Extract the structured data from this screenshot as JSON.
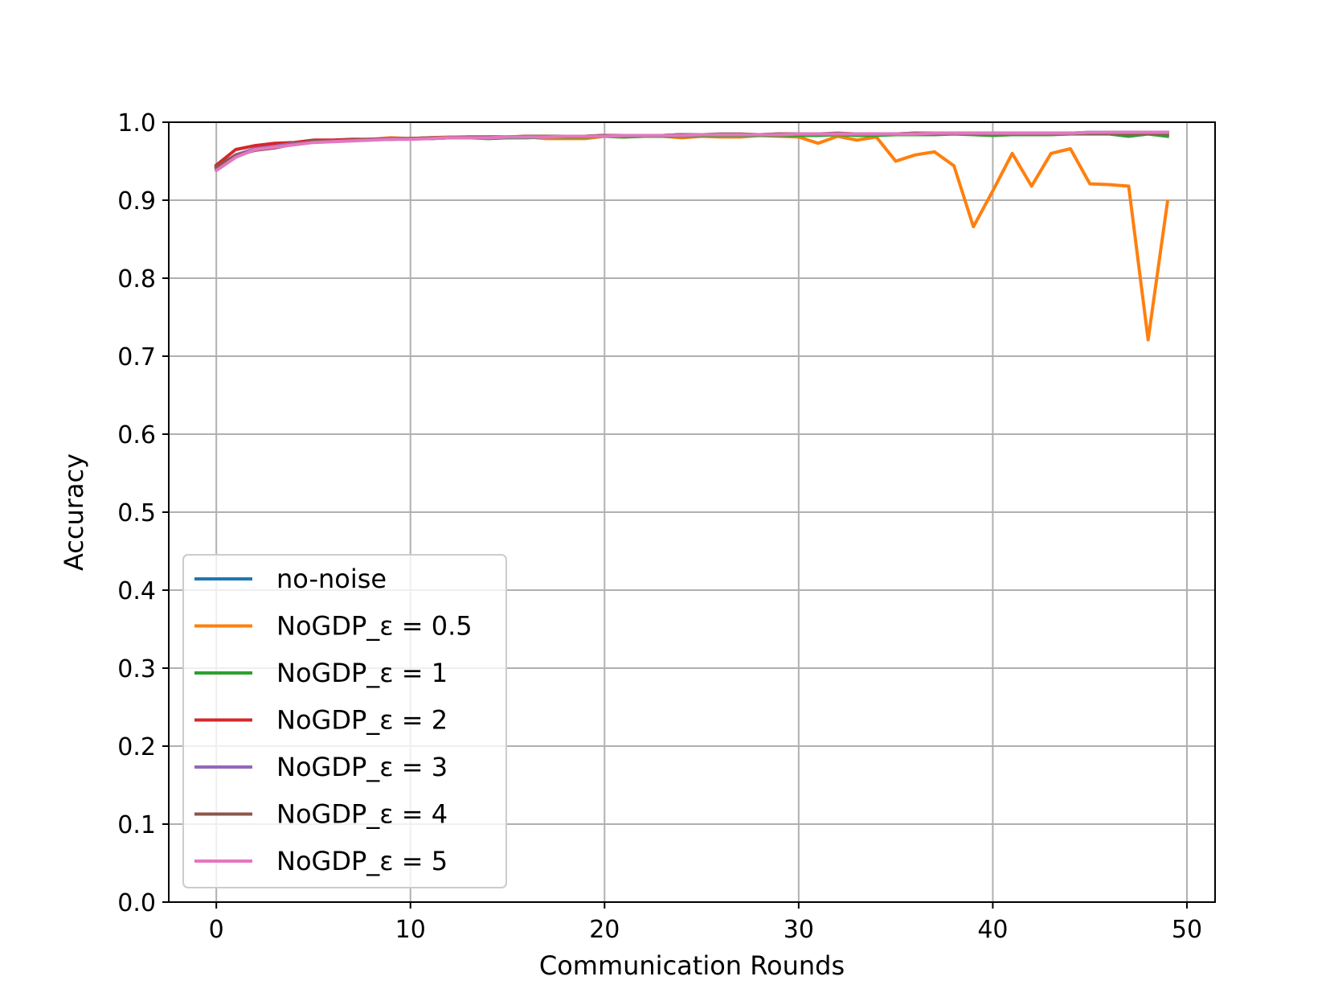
{
  "chart_data": {
    "type": "line",
    "title": "",
    "xlabel": "Communication Rounds",
    "ylabel": "Accuracy",
    "xlim": [
      -2.45,
      51.45
    ],
    "ylim": [
      0.0,
      1.0
    ],
    "xticks": [
      0,
      10,
      20,
      30,
      40,
      50
    ],
    "xtick_labels": [
      "0",
      "10",
      "20",
      "30",
      "40",
      "50"
    ],
    "yticks": [
      0.0,
      0.1,
      0.2,
      0.3,
      0.4,
      0.5,
      0.6,
      0.7,
      0.8,
      0.9,
      1.0
    ],
    "ytick_labels": [
      "0.0",
      "0.1",
      "0.2",
      "0.3",
      "0.4",
      "0.5",
      "0.6",
      "0.7",
      "0.8",
      "0.9",
      "1.0"
    ],
    "grid": true,
    "legend_position": "lower-left",
    "x": [
      0,
      1,
      2,
      3,
      4,
      5,
      6,
      7,
      8,
      9,
      10,
      11,
      12,
      13,
      14,
      15,
      16,
      17,
      18,
      19,
      20,
      21,
      22,
      23,
      24,
      25,
      26,
      27,
      28,
      29,
      30,
      31,
      32,
      33,
      34,
      35,
      36,
      37,
      38,
      39,
      40,
      41,
      42,
      43,
      44,
      45,
      46,
      47,
      48,
      49
    ],
    "series": [
      {
        "name": "no-noise",
        "legend_prefix": "no-noise",
        "legend_eps": "",
        "color": "#1f77b4",
        "values": [
          0.942,
          0.958,
          0.966,
          0.97,
          0.973,
          0.975,
          0.976,
          0.977,
          0.978,
          0.978,
          0.979,
          0.979,
          0.98,
          0.98,
          0.981,
          0.981,
          0.981,
          0.982,
          0.982,
          0.982,
          0.983,
          0.983,
          0.983,
          0.983,
          0.984,
          0.984,
          0.984,
          0.984,
          0.984,
          0.984,
          0.985,
          0.985,
          0.985,
          0.985,
          0.985,
          0.985,
          0.985,
          0.986,
          0.986,
          0.986,
          0.986,
          0.986,
          0.986,
          0.986,
          0.986,
          0.987,
          0.987,
          0.987,
          0.987,
          0.987
        ]
      },
      {
        "name": "NoGDP_ε = 0.5",
        "legend_prefix": "NoGDP_",
        "legend_eps": "ε = 0.5",
        "color": "#ff7f0e",
        "values": [
          0.94,
          0.958,
          0.965,
          0.968,
          0.972,
          0.975,
          0.976,
          0.977,
          0.978,
          0.98,
          0.979,
          0.98,
          0.981,
          0.981,
          0.98,
          0.98,
          0.981,
          0.979,
          0.979,
          0.979,
          0.982,
          0.981,
          0.982,
          0.982,
          0.98,
          0.982,
          0.981,
          0.981,
          0.983,
          0.982,
          0.981,
          0.973,
          0.982,
          0.977,
          0.981,
          0.95,
          0.958,
          0.962,
          0.944,
          0.866,
          0.912,
          0.96,
          0.918,
          0.96,
          0.966,
          0.921,
          0.92,
          0.918,
          0.721,
          0.898
        ]
      },
      {
        "name": "NoGDP_ε = 1",
        "legend_prefix": "NoGDP_",
        "legend_eps": "ε = 1",
        "color": "#2ca02c",
        "values": [
          0.941,
          0.957,
          0.965,
          0.969,
          0.972,
          0.975,
          0.976,
          0.977,
          0.978,
          0.978,
          0.979,
          0.979,
          0.98,
          0.98,
          0.979,
          0.98,
          0.98,
          0.981,
          0.981,
          0.981,
          0.982,
          0.981,
          0.982,
          0.982,
          0.982,
          0.983,
          0.983,
          0.983,
          0.983,
          0.983,
          0.983,
          0.983,
          0.984,
          0.983,
          0.983,
          0.984,
          0.984,
          0.984,
          0.985,
          0.984,
          0.983,
          0.984,
          0.984,
          0.984,
          0.985,
          0.985,
          0.985,
          0.982,
          0.985,
          0.982
        ]
      },
      {
        "name": "NoGDP_ε = 2",
        "legend_prefix": "NoGDP_",
        "legend_eps": "ε = 2",
        "color": "#d62728",
        "values": [
          0.945,
          0.965,
          0.97,
          0.973,
          0.974,
          0.977,
          0.977,
          0.978,
          0.978,
          0.979,
          0.979,
          0.98,
          0.98,
          0.981,
          0.981,
          0.981,
          0.982,
          0.982,
          0.982,
          0.982,
          0.983,
          0.983,
          0.983,
          0.983,
          0.984,
          0.984,
          0.984,
          0.984,
          0.984,
          0.985,
          0.985,
          0.985,
          0.985,
          0.985,
          0.985,
          0.985,
          0.986,
          0.986,
          0.986,
          0.986,
          0.986,
          0.986,
          0.986,
          0.986,
          0.986,
          0.986,
          0.986,
          0.986,
          0.986,
          0.986
        ]
      },
      {
        "name": "NoGDP_ε = 3",
        "legend_prefix": "NoGDP_",
        "legend_eps": "ε = 3",
        "color": "#9467bd",
        "values": [
          0.942,
          0.958,
          0.966,
          0.969,
          0.973,
          0.975,
          0.976,
          0.977,
          0.978,
          0.978,
          0.979,
          0.979,
          0.98,
          0.98,
          0.98,
          0.981,
          0.981,
          0.981,
          0.982,
          0.982,
          0.982,
          0.983,
          0.983,
          0.983,
          0.983,
          0.984,
          0.984,
          0.984,
          0.984,
          0.984,
          0.985,
          0.985,
          0.985,
          0.985,
          0.985,
          0.985,
          0.985,
          0.986,
          0.986,
          0.986,
          0.986,
          0.986,
          0.986,
          0.986,
          0.986,
          0.986,
          0.986,
          0.987,
          0.987,
          0.987
        ]
      },
      {
        "name": "NoGDP_ε = 4",
        "legend_prefix": "NoGDP_",
        "legend_eps": "ε = 4",
        "color": "#8c564b",
        "values": [
          0.943,
          0.957,
          0.964,
          0.967,
          0.972,
          0.976,
          0.976,
          0.977,
          0.978,
          0.979,
          0.979,
          0.98,
          0.98,
          0.981,
          0.981,
          0.981,
          0.982,
          0.982,
          0.982,
          0.982,
          0.983,
          0.983,
          0.983,
          0.983,
          0.984,
          0.984,
          0.985,
          0.985,
          0.984,
          0.985,
          0.985,
          0.985,
          0.986,
          0.985,
          0.985,
          0.985,
          0.986,
          0.986,
          0.986,
          0.986,
          0.986,
          0.986,
          0.986,
          0.986,
          0.986,
          0.986,
          0.986,
          0.986,
          0.986,
          0.986
        ]
      },
      {
        "name": "NoGDP_ε = 5",
        "legend_prefix": "NoGDP_",
        "legend_eps": "ε = 5",
        "color": "#e377c2",
        "values": [
          0.938,
          0.955,
          0.965,
          0.968,
          0.971,
          0.974,
          0.975,
          0.976,
          0.977,
          0.978,
          0.978,
          0.979,
          0.98,
          0.98,
          0.98,
          0.981,
          0.981,
          0.981,
          0.982,
          0.982,
          0.982,
          0.983,
          0.983,
          0.983,
          0.983,
          0.984,
          0.984,
          0.984,
          0.984,
          0.984,
          0.985,
          0.985,
          0.985,
          0.985,
          0.985,
          0.985,
          0.985,
          0.986,
          0.986,
          0.986,
          0.986,
          0.986,
          0.986,
          0.986,
          0.986,
          0.987,
          0.987,
          0.987,
          0.987,
          0.987
        ]
      }
    ]
  }
}
